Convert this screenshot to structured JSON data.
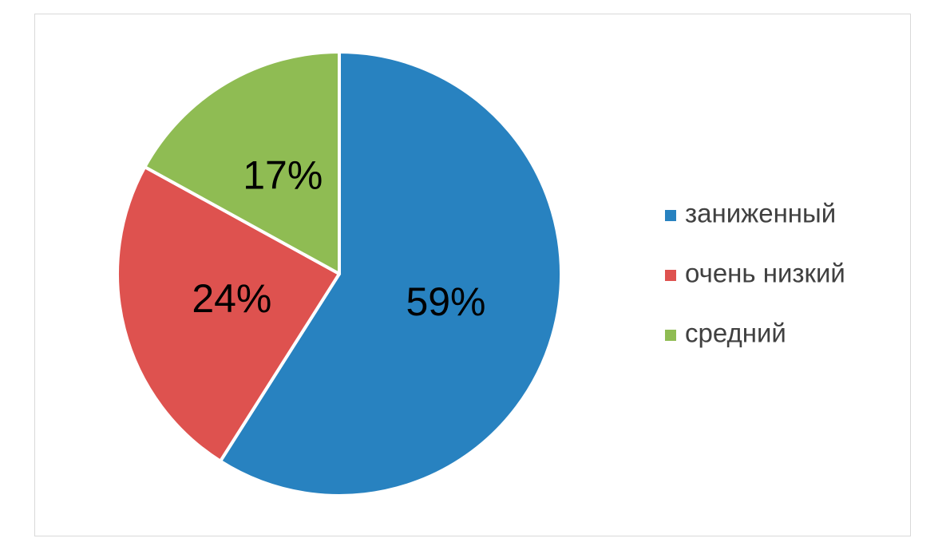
{
  "chart_data": {
    "type": "pie",
    "categories": [
      "заниженный",
      "очень низкий",
      "средний"
    ],
    "values": [
      59,
      24,
      17
    ],
    "value_labels": [
      "59%",
      "24%",
      "17%"
    ],
    "colors": [
      "#2882c0",
      "#de524f",
      "#8fbc53"
    ],
    "legend": "right"
  }
}
